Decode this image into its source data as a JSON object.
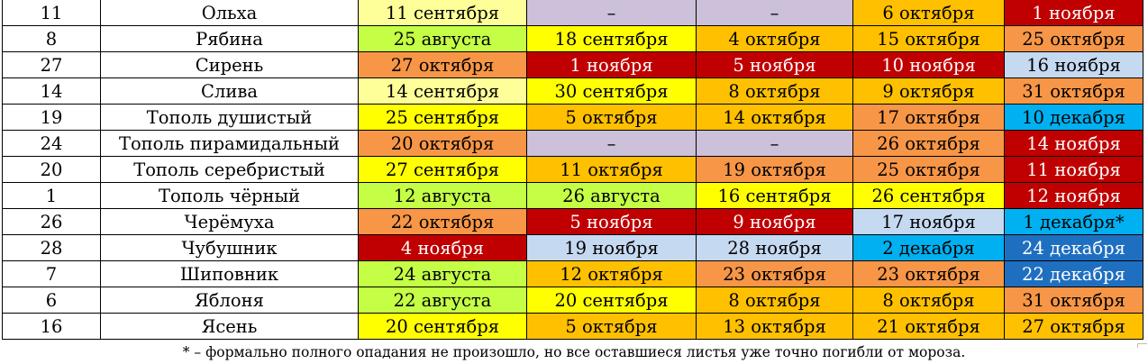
{
  "colors": {
    "pale_yellow": "#ffff99",
    "lavender": "#ccc0da",
    "yellow": "#ffff00",
    "amber": "#ffc000",
    "orange": "#f79646",
    "red": "#c00000",
    "lime": "#c4ff45",
    "pale_blue": "#c5d9f1",
    "sky_blue": "#00b0f0",
    "blue": "#1f6fc1"
  },
  "rows": [
    {
      "num": "11",
      "name": "Ольха",
      "cells": [
        {
          "text": "11 сентября",
          "color": "pale_yellow"
        },
        {
          "text": "–",
          "color": "lavender"
        },
        {
          "text": "–",
          "color": "lavender"
        },
        {
          "text": "6 октября",
          "color": "amber"
        },
        {
          "text": "1 ноября",
          "color": "red"
        }
      ]
    },
    {
      "num": "8",
      "name": "Рябина",
      "cells": [
        {
          "text": "25 августа",
          "color": "lime"
        },
        {
          "text": "18 сентября",
          "color": "yellow"
        },
        {
          "text": "4 октября",
          "color": "amber"
        },
        {
          "text": "15 октября",
          "color": "amber"
        },
        {
          "text": "25 октября",
          "color": "orange"
        }
      ]
    },
    {
      "num": "27",
      "name": "Сирень",
      "cells": [
        {
          "text": "27 октября",
          "color": "orange"
        },
        {
          "text": "1 ноября",
          "color": "red"
        },
        {
          "text": "5 ноября",
          "color": "red"
        },
        {
          "text": "10 ноября",
          "color": "red"
        },
        {
          "text": "16 ноября",
          "color": "pale_blue"
        }
      ]
    },
    {
      "num": "14",
      "name": "Слива",
      "cells": [
        {
          "text": "14 сентября",
          "color": "pale_yellow"
        },
        {
          "text": "30 сентября",
          "color": "yellow"
        },
        {
          "text": "8 октября",
          "color": "amber"
        },
        {
          "text": "9 октября",
          "color": "amber"
        },
        {
          "text": "31 октября",
          "color": "orange"
        }
      ]
    },
    {
      "num": "19",
      "name": "Тополь душистый",
      "cells": [
        {
          "text": "25 сентября",
          "color": "yellow"
        },
        {
          "text": "5 октября",
          "color": "amber"
        },
        {
          "text": "14 октября",
          "color": "amber"
        },
        {
          "text": "17 октября",
          "color": "orange"
        },
        {
          "text": "10 декабря",
          "color": "sky_blue"
        }
      ]
    },
    {
      "num": "24",
      "name": "Тополь пирамидальный",
      "cells": [
        {
          "text": "20 октября",
          "color": "orange"
        },
        {
          "text": "–",
          "color": "lavender"
        },
        {
          "text": "–",
          "color": "lavender"
        },
        {
          "text": "26 октября",
          "color": "orange"
        },
        {
          "text": "14 ноября",
          "color": "red"
        }
      ]
    },
    {
      "num": "20",
      "name": "Тополь серебристый",
      "cells": [
        {
          "text": "27 сентября",
          "color": "yellow"
        },
        {
          "text": "11 октября",
          "color": "amber"
        },
        {
          "text": "19 октября",
          "color": "orange"
        },
        {
          "text": "25 октября",
          "color": "orange"
        },
        {
          "text": "11 ноября",
          "color": "red"
        }
      ]
    },
    {
      "num": "1",
      "name": "Тополь чёрный",
      "cells": [
        {
          "text": "12 августа",
          "color": "lime"
        },
        {
          "text": "26 августа",
          "color": "lime"
        },
        {
          "text": "16 сентября",
          "color": "yellow"
        },
        {
          "text": "26 сентября",
          "color": "yellow"
        },
        {
          "text": "12 ноября",
          "color": "red"
        }
      ]
    },
    {
      "num": "26",
      "name": "Черёмуха",
      "cells": [
        {
          "text": "22 октября",
          "color": "orange"
        },
        {
          "text": "5 ноября",
          "color": "red"
        },
        {
          "text": "9 ноября",
          "color": "red"
        },
        {
          "text": "17 ноября",
          "color": "pale_blue"
        },
        {
          "text": "1 декабря*",
          "color": "sky_blue"
        }
      ]
    },
    {
      "num": "28",
      "name": "Чубушник",
      "cells": [
        {
          "text": "4 ноября",
          "color": "red"
        },
        {
          "text": "19 ноября",
          "color": "pale_blue"
        },
        {
          "text": "28 ноября",
          "color": "pale_blue"
        },
        {
          "text": "2 декабря",
          "color": "sky_blue"
        },
        {
          "text": "24 декабря",
          "color": "blue"
        }
      ]
    },
    {
      "num": "7",
      "name": "Шиповник",
      "cells": [
        {
          "text": "24 августа",
          "color": "lime"
        },
        {
          "text": "12 октября",
          "color": "amber"
        },
        {
          "text": "23 октября",
          "color": "orange"
        },
        {
          "text": "23 октября",
          "color": "orange"
        },
        {
          "text": "22 декабря",
          "color": "blue"
        }
      ]
    },
    {
      "num": "6",
      "name": "Яблоня",
      "cells": [
        {
          "text": "22 августа",
          "color": "lime"
        },
        {
          "text": "20 сентября",
          "color": "yellow"
        },
        {
          "text": "8 октября",
          "color": "amber"
        },
        {
          "text": "8 октября",
          "color": "amber"
        },
        {
          "text": "31 октября",
          "color": "orange"
        }
      ]
    },
    {
      "num": "16",
      "name": "Ясень",
      "cells": [
        {
          "text": "20 сентября",
          "color": "yellow"
        },
        {
          "text": "5 октября",
          "color": "amber"
        },
        {
          "text": "13 октября",
          "color": "amber"
        },
        {
          "text": "21 октября",
          "color": "amber"
        },
        {
          "text": "27 октября",
          "color": "amber"
        }
      ]
    }
  ],
  "footnote": "* – формально полного опадания не произошло, но все оставшиеся листья уже точно погибли от мороза."
}
